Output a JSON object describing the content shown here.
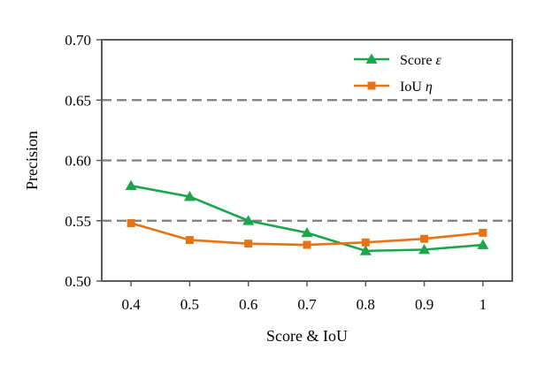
{
  "chart_data": {
    "type": "line",
    "xlabel": "Score & IoU",
    "ylabel": "Precision",
    "x": [
      0.4,
      0.5,
      0.6,
      0.7,
      0.8,
      0.9,
      1
    ],
    "x_tick_labels": [
      "0.4",
      "0.5",
      "0.6",
      "0.7",
      "0.8",
      "0.9",
      "1"
    ],
    "y_tick_values": [
      0.5,
      0.55,
      0.6,
      0.65,
      0.7
    ],
    "y_tick_labels": [
      "0.50",
      "0.55",
      "0.60",
      "0.65",
      "0.70"
    ],
    "xlim": [
      0.35,
      1.05
    ],
    "ylim": [
      0.5,
      0.7
    ],
    "grid": "horizontal dashed",
    "legend_position": "top-right",
    "series": [
      {
        "name_prefix": "Score",
        "name_symbol": "ε",
        "color": "#1aa64b",
        "marker": "triangle",
        "values": [
          0.579,
          0.57,
          0.55,
          0.54,
          0.525,
          0.526,
          0.53
        ]
      },
      {
        "name_prefix": "IoU",
        "name_symbol": "η",
        "color": "#e87317",
        "marker": "square",
        "values": [
          0.548,
          0.534,
          0.531,
          0.53,
          0.532,
          0.535,
          0.54
        ]
      }
    ]
  }
}
